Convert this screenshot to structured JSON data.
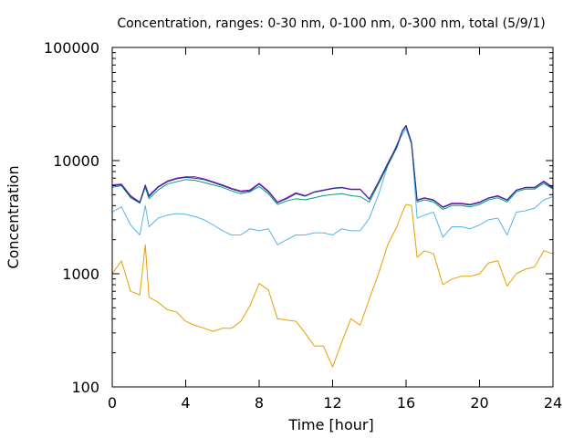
{
  "chart_data": {
    "type": "line",
    "title": "Concentration, ranges: 0-30 nm, 0-100 nm, 0-300 nm, total (5/9/1)",
    "xlabel": "Time [hour]",
    "ylabel": "Concentration",
    "xlim": [
      0,
      24
    ],
    "ylim": [
      100,
      100000
    ],
    "y_scale": "log",
    "grid": false,
    "x_ticks": [
      "0",
      "4",
      "8",
      "12",
      "16",
      "20",
      "24"
    ],
    "y_ticks": [
      "100",
      "1000",
      "10000",
      "100000"
    ],
    "x_tick_values": [
      0,
      4,
      8,
      12,
      16,
      20,
      24
    ],
    "y_tick_values": [
      100,
      1000,
      10000,
      100000
    ],
    "x": [
      0,
      0.5,
      1,
      1.5,
      1.8,
      2,
      2.5,
      3,
      3.5,
      4,
      4.5,
      5,
      5.5,
      6,
      6.5,
      7,
      7.5,
      8,
      8.5,
      9,
      9.5,
      10,
      10.5,
      11,
      11.5,
      12,
      12.5,
      13,
      13.5,
      14,
      14.5,
      15,
      15.5,
      15.8,
      16,
      16.3,
      16.6,
      17,
      17.5,
      18,
      18.5,
      19,
      19.5,
      20,
      20.5,
      21,
      21.5,
      22,
      22.5,
      23,
      23.5,
      24
    ],
    "series": [
      {
        "color": "#e69f00",
        "values": [
          1000,
          1300,
          700,
          650,
          1800,
          620,
          560,
          480,
          460,
          380,
          350,
          330,
          310,
          330,
          330,
          380,
          520,
          820,
          720,
          400,
          390,
          380,
          300,
          230,
          230,
          150,
          250,
          400,
          350,
          600,
          1000,
          1800,
          2600,
          3500,
          4100,
          4000,
          1400,
          1600,
          1500,
          800,
          900,
          950,
          950,
          1000,
          1250,
          1300,
          780,
          1000,
          1100,
          1150,
          1600,
          1500
        ]
      },
      {
        "color": "#56b4e9",
        "values": [
          3500,
          3900,
          2700,
          2200,
          4000,
          2600,
          3100,
          3300,
          3400,
          3350,
          3200,
          3000,
          2700,
          2400,
          2200,
          2200,
          2500,
          2400,
          2500,
          1800,
          2000,
          2200,
          2200,
          2300,
          2300,
          2200,
          2500,
          2400,
          2400,
          3100,
          5000,
          9000,
          14000,
          17000,
          19000,
          14000,
          3100,
          3300,
          3500,
          2100,
          2600,
          2600,
          2500,
          2700,
          3000,
          3100,
          2200,
          3500,
          3600,
          3800,
          4500,
          4800
        ]
      },
      {
        "color": "#009e73",
        "values": [
          5800,
          6000,
          4700,
          4200,
          5800,
          4600,
          5500,
          6200,
          6500,
          6800,
          6700,
          6400,
          6100,
          5800,
          5400,
          5100,
          5300,
          5900,
          5100,
          4100,
          4400,
          4600,
          4500,
          4700,
          4900,
          5000,
          5100,
          4900,
          4800,
          4300,
          6200,
          9000,
          13000,
          18000,
          20000,
          14000,
          4300,
          4500,
          4300,
          3700,
          4000,
          4000,
          3900,
          4100,
          4500,
          4700,
          4300,
          5300,
          5600,
          5600,
          6300,
          5600
        ]
      },
      {
        "color": "#9400d3",
        "values": [
          6100,
          6200,
          4900,
          4300,
          6100,
          4900,
          5900,
          6600,
          7000,
          7200,
          7200,
          6900,
          6500,
          6100,
          5700,
          5400,
          5500,
          6300,
          5400,
          4300,
          4700,
          5200,
          4900,
          5300,
          5500,
          5700,
          5800,
          5600,
          5600,
          4600,
          6500,
          9500,
          13500,
          18500,
          20500,
          14500,
          4500,
          4700,
          4500,
          3900,
          4200,
          4200,
          4100,
          4300,
          4700,
          4900,
          4500,
          5500,
          5800,
          5800,
          6600,
          5800
        ]
      },
      {
        "color": "#1a3a8c",
        "values": [
          6000,
          6100,
          4800,
          4250,
          6000,
          4800,
          5800,
          6500,
          6900,
          7100,
          7000,
          6800,
          6400,
          6000,
          5600,
          5300,
          5400,
          6200,
          5300,
          4250,
          4600,
          5100,
          4850,
          5250,
          5450,
          5650,
          5750,
          5550,
          5550,
          4550,
          6400,
          9300,
          13300,
          18300,
          20300,
          14300,
          4450,
          4650,
          4450,
          3850,
          4150,
          4150,
          4050,
          4250,
          4650,
          4850,
          4450,
          5450,
          5750,
          5750,
          6500,
          5700
        ]
      }
    ]
  }
}
